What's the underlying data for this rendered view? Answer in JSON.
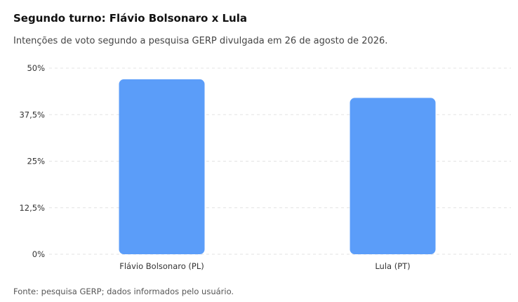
{
  "title": "Segundo turno: Flávio Bolsonaro x Lula",
  "subtitle": "Intenções de voto segundo a pesquisa GERP divulgada em 26 de agosto de 2026.",
  "source": "Fonte: pesquisa GERP; dados informados pelo usuário.",
  "chart_data": {
    "type": "bar",
    "categories": [
      "Flávio Bolsonaro (PL)",
      "Lula (PT)"
    ],
    "values": [
      47,
      42
    ],
    "title": "Segundo turno: Flávio Bolsonaro x Lula",
    "xlabel": "",
    "ylabel": "",
    "ylim": [
      0,
      50
    ],
    "yticks": [
      0,
      12.5,
      25,
      37.5,
      50
    ],
    "ytick_labels": [
      "0%",
      "12,5%",
      "25%",
      "37,5%",
      "50%"
    ],
    "grid": true,
    "legend": "none",
    "bar_color": "#5b9df9"
  }
}
